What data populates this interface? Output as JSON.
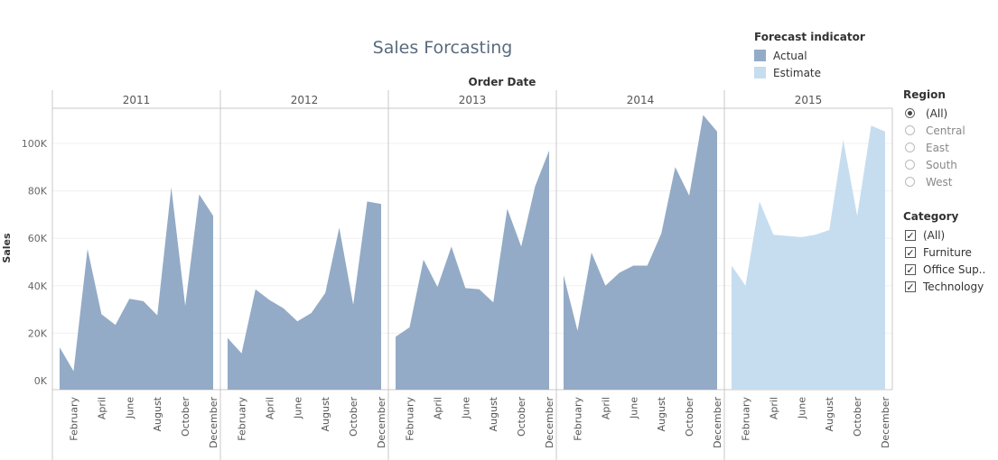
{
  "chart_data": {
    "type": "area",
    "title": "Sales Forcasting",
    "column_header": "Order Date",
    "ylabel": "Sales",
    "ylim": [
      0,
      120000
    ],
    "y_ticks": [
      0,
      20000,
      40000,
      60000,
      80000,
      100000
    ],
    "y_tick_labels": [
      "0K",
      "20K",
      "40K",
      "60K",
      "80K",
      "100K"
    ],
    "x_tick_labels": [
      "February",
      "April",
      "June",
      "August",
      "October",
      "December"
    ],
    "x_tick_months": [
      2,
      4,
      6,
      8,
      10,
      12
    ],
    "legend_position": "top-right",
    "years": [
      {
        "year": "2011",
        "series": "Actual",
        "values": [
          14000,
          4000,
          55500,
          28000,
          23500,
          34500,
          33500,
          27500,
          81500,
          31500,
          78500,
          69500
        ]
      },
      {
        "year": "2012",
        "series": "Actual",
        "values": [
          18000,
          11500,
          38500,
          34000,
          30500,
          25000,
          28500,
          37000,
          64500,
          32000,
          75500,
          74500
        ]
      },
      {
        "year": "2013",
        "series": "Actual",
        "values": [
          18500,
          22500,
          51000,
          39500,
          56500,
          39000,
          38500,
          33000,
          72500,
          56500,
          82000,
          97000
        ]
      },
      {
        "year": "2014",
        "series": "Actual",
        "values": [
          44500,
          21000,
          54000,
          40000,
          45500,
          48500,
          48500,
          62000,
          90000,
          78000,
          112000,
          105000
        ]
      },
      {
        "year": "2015",
        "series": "Estimate",
        "values": [
          48500,
          40000,
          75500,
          61500,
          61000,
          60500,
          61500,
          63500,
          101500,
          69500,
          107500,
          105000
        ]
      }
    ]
  },
  "legend": {
    "title": "Forecast indicator",
    "items": [
      {
        "label": "Actual",
        "color": "#93abc6"
      },
      {
        "label": "Estimate",
        "color": "#c6ddf0"
      }
    ]
  },
  "region": {
    "title": "Region",
    "options": [
      {
        "label": "(All)",
        "selected": true
      },
      {
        "label": "Central",
        "selected": false
      },
      {
        "label": "East",
        "selected": false
      },
      {
        "label": "South",
        "selected": false
      },
      {
        "label": "West",
        "selected": false
      }
    ]
  },
  "category": {
    "title": "Category",
    "options": [
      {
        "label": "(All)",
        "checked": true
      },
      {
        "label": "Furniture",
        "checked": true
      },
      {
        "label": "Office Sup...",
        "checked": true
      },
      {
        "label": "Technology",
        "checked": true
      }
    ]
  }
}
